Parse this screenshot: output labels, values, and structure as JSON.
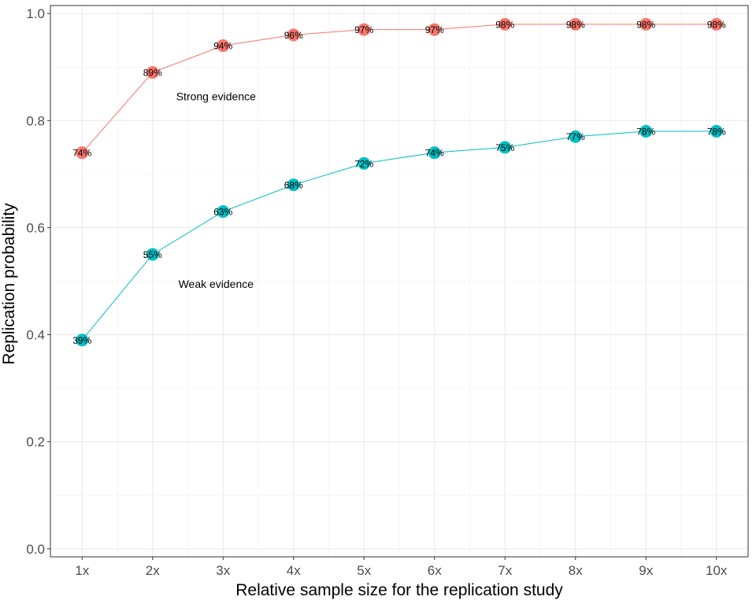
{
  "chart_data": {
    "type": "line",
    "title": "",
    "xlabel": "Relative sample size for the replication study",
    "ylabel": "Replication probability",
    "categories": [
      "1x",
      "2x",
      "3x",
      "4x",
      "5x",
      "6x",
      "7x",
      "8x",
      "9x",
      "10x"
    ],
    "ylim": [
      0,
      1
    ],
    "yticks": [
      0.0,
      0.2,
      0.4,
      0.6,
      0.8,
      1.0
    ],
    "ytick_labels": [
      "0.0",
      "0.2",
      "0.4",
      "0.6",
      "0.8",
      "1.0"
    ],
    "grid": true,
    "legend": "none",
    "series": [
      {
        "color": "#F8766D",
        "values": [
          0.74,
          0.89,
          0.94,
          0.96,
          0.97,
          0.97,
          0.98,
          0.98,
          0.98,
          0.98
        ],
        "labels": [
          "74%",
          "89%",
          "94%",
          "96%",
          "97%",
          "97%",
          "98%",
          "98%",
          "98%",
          "98%"
        ]
      },
      {
        "color": "#00BFC4",
        "values": [
          0.39,
          0.55,
          0.63,
          0.68,
          0.72,
          0.74,
          0.75,
          0.77,
          0.78,
          0.78
        ],
        "labels": [
          "39%",
          "55%",
          "63%",
          "68%",
          "72%",
          "74%",
          "75%",
          "77%",
          "78%",
          "78%"
        ]
      }
    ],
    "annotations": [
      {
        "text": "Strong evidence",
        "x": 2.9,
        "y": 0.845
      },
      {
        "text": "Weak evidence",
        "x": 2.9,
        "y": 0.495
      }
    ]
  }
}
